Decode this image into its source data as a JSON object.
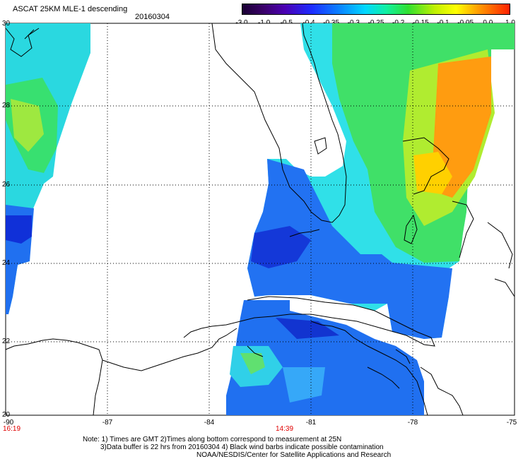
{
  "header": {
    "title": "ASCAT 25KM MLE-1 descending",
    "date": "20160304"
  },
  "colorbar": {
    "labels": [
      "-3.0",
      "-1.0",
      "-0.5",
      "-0.4",
      "-0.35",
      "-0.3",
      "-0.25",
      "-0.2",
      "-0.15",
      "-0.1",
      "-0.05",
      "0.0",
      "1.0"
    ]
  },
  "axes": {
    "lat_labels": [
      "30",
      "28",
      "26",
      "24",
      "22",
      "20"
    ],
    "lon_labels": [
      "-90",
      "-87",
      "-84",
      "-81",
      "-78",
      "-75"
    ]
  },
  "time_marks": {
    "left": "16:19",
    "middle": "14:39"
  },
  "notes": {
    "line1": "Note: 1) Times are GMT 2)Times along bottom correspond to measurement at 25N",
    "line2": "3)Data buffer is 22 hrs from 20160304 4) Black wind barbs indicate possible contamination",
    "line3": "NOAA/NESDIS/Center for Satellite Applications and Research"
  },
  "colors": {
    "blue": "#1a5cff",
    "cyan": "#00e0f0",
    "green": "#30e050",
    "orange": "#ff9000",
    "coast": "#000000"
  }
}
